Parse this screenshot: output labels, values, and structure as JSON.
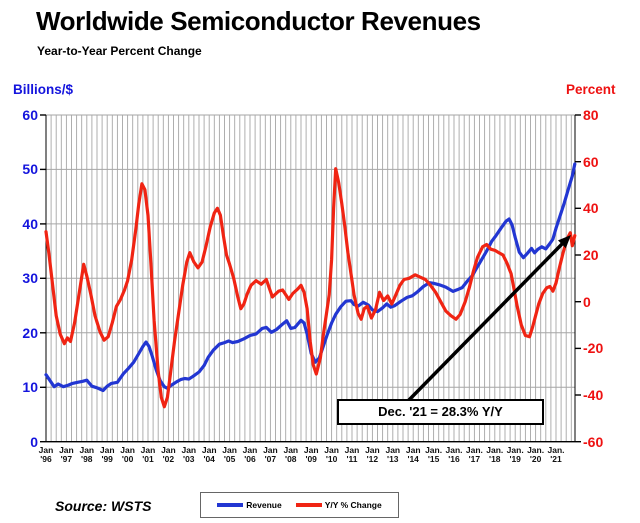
{
  "title": "Worldwide Semiconductor Revenues",
  "subtitle": "Year-to-Year Percent Change",
  "source": "Source: WSTS",
  "annotation": {
    "text": "Dec. '21 = 28.3% Y/Y"
  },
  "left_axis": {
    "label": "Billions/$",
    "color": "#1414dd",
    "ticks": [
      60,
      50,
      40,
      30,
      20,
      10,
      0
    ],
    "min": 0,
    "max": 60
  },
  "right_axis": {
    "label": "Percent",
    "color": "#ee1111",
    "ticks": [
      80,
      60,
      40,
      20,
      0,
      -20,
      -40,
      -60
    ],
    "min": -60,
    "max": 80
  },
  "x_axis": {
    "month_labels": [
      "Jan",
      "Jan",
      "Jan",
      "Jan",
      "Jan",
      "Jan",
      "Jan",
      "Jan",
      "Jan",
      "Jan",
      "Jan",
      "Jan",
      "Jan",
      "Jan",
      "Jan",
      "Jan",
      "Jan",
      "Jan",
      "Jan",
      "Jan.",
      "Jan.",
      "Jan.",
      "Jan.",
      "Jan.",
      "Jan.",
      "Jan."
    ],
    "year_labels": [
      "'96",
      "'97",
      "'98",
      "'99",
      "'00",
      "'01",
      "'02",
      "'03",
      "'04",
      "'05",
      "'06",
      "'07",
      "'08",
      "'09",
      "'10",
      "'11",
      "'12",
      "'13",
      "'14",
      "'15",
      "'16",
      "'17",
      "'18",
      "'19",
      "'20",
      "'21"
    ]
  },
  "legend": [
    {
      "label": "Revenue",
      "color": "#2236d2"
    },
    {
      "label": "Y/Y % Change",
      "color": "#f02413"
    }
  ],
  "chart_data": {
    "type": "line",
    "title": "Worldwide Semiconductor Revenues",
    "subtitle": "Year-to-Year Percent Change",
    "x_range": [
      1996,
      2022
    ],
    "left_ylim": [
      0,
      60
    ],
    "right_ylim": [
      -60,
      80
    ],
    "gridlines": {
      "vertical": "quarterly",
      "horizontal": "every 10 on left axis"
    },
    "legend_position": "bottom-center",
    "annotation": {
      "text": "Dec. '21 = 28.3% Y/Y",
      "points_to": [
        2021.92,
        28.3
      ]
    },
    "series": [
      {
        "name": "Revenue",
        "axis": "left",
        "unit": "US$ billions per month",
        "color": "#2236d2",
        "points": [
          [
            1996.0,
            12.3
          ],
          [
            1996.2,
            11.2
          ],
          [
            1996.4,
            10.1
          ],
          [
            1996.6,
            10.6
          ],
          [
            1996.85,
            10.1
          ],
          [
            1997.1,
            10.4
          ],
          [
            1997.3,
            10.7
          ],
          [
            1997.55,
            10.9
          ],
          [
            1997.8,
            11.1
          ],
          [
            1998.0,
            11.3
          ],
          [
            1998.25,
            10.2
          ],
          [
            1998.5,
            9.9
          ],
          [
            1998.8,
            9.4
          ],
          [
            1999.0,
            10.2
          ],
          [
            1999.2,
            10.7
          ],
          [
            1999.5,
            10.9
          ],
          [
            1999.8,
            12.5
          ],
          [
            2000.05,
            13.5
          ],
          [
            2000.3,
            14.6
          ],
          [
            2000.55,
            16.2
          ],
          [
            2000.75,
            17.5
          ],
          [
            2000.9,
            18.3
          ],
          [
            2001.05,
            17.5
          ],
          [
            2001.2,
            15.8
          ],
          [
            2001.4,
            13.2
          ],
          [
            2001.6,
            11.2
          ],
          [
            2001.8,
            10.1
          ],
          [
            2001.95,
            9.8
          ],
          [
            2002.15,
            10.4
          ],
          [
            2002.4,
            11.0
          ],
          [
            2002.6,
            11.4
          ],
          [
            2002.8,
            11.6
          ],
          [
            2003.0,
            11.5
          ],
          [
            2003.2,
            12.0
          ],
          [
            2003.5,
            12.8
          ],
          [
            2003.75,
            14.0
          ],
          [
            2003.95,
            15.5
          ],
          [
            2004.2,
            16.8
          ],
          [
            2004.5,
            17.9
          ],
          [
            2004.75,
            18.2
          ],
          [
            2004.95,
            18.5
          ],
          [
            2005.15,
            18.2
          ],
          [
            2005.4,
            18.4
          ],
          [
            2005.7,
            18.9
          ],
          [
            2006.0,
            19.5
          ],
          [
            2006.3,
            19.8
          ],
          [
            2006.6,
            20.8
          ],
          [
            2006.8,
            21.0
          ],
          [
            2007.05,
            20.1
          ],
          [
            2007.3,
            20.6
          ],
          [
            2007.6,
            21.6
          ],
          [
            2007.8,
            22.2
          ],
          [
            2008.0,
            20.8
          ],
          [
            2008.2,
            21.0
          ],
          [
            2008.5,
            22.3
          ],
          [
            2008.65,
            21.8
          ],
          [
            2008.8,
            19.8
          ],
          [
            2009.0,
            16.2
          ],
          [
            2009.2,
            14.6
          ],
          [
            2009.4,
            15.4
          ],
          [
            2009.6,
            17.6
          ],
          [
            2009.8,
            19.8
          ],
          [
            2010.0,
            21.8
          ],
          [
            2010.2,
            23.4
          ],
          [
            2010.45,
            24.8
          ],
          [
            2010.7,
            25.8
          ],
          [
            2010.95,
            25.9
          ],
          [
            2011.1,
            25.2
          ],
          [
            2011.3,
            24.9
          ],
          [
            2011.55,
            25.6
          ],
          [
            2011.8,
            25.1
          ],
          [
            2012.0,
            24.2
          ],
          [
            2012.25,
            23.9
          ],
          [
            2012.5,
            24.6
          ],
          [
            2012.7,
            25.3
          ],
          [
            2012.9,
            24.7
          ],
          [
            2013.1,
            25.0
          ],
          [
            2013.4,
            25.8
          ],
          [
            2013.7,
            26.5
          ],
          [
            2013.95,
            26.8
          ],
          [
            2014.2,
            27.5
          ],
          [
            2014.5,
            28.5
          ],
          [
            2014.8,
            29.2
          ],
          [
            2015.0,
            29.1
          ],
          [
            2015.3,
            28.8
          ],
          [
            2015.6,
            28.4
          ],
          [
            2015.95,
            27.6
          ],
          [
            2016.15,
            27.9
          ],
          [
            2016.4,
            28.3
          ],
          [
            2016.65,
            29.5
          ],
          [
            2016.9,
            30.5
          ],
          [
            2017.1,
            31.8
          ],
          [
            2017.35,
            33.4
          ],
          [
            2017.6,
            35.0
          ],
          [
            2017.85,
            36.8
          ],
          [
            2018.05,
            37.8
          ],
          [
            2018.3,
            39.2
          ],
          [
            2018.55,
            40.5
          ],
          [
            2018.7,
            40.9
          ],
          [
            2018.85,
            39.8
          ],
          [
            2019.0,
            37.5
          ],
          [
            2019.2,
            34.8
          ],
          [
            2019.4,
            33.8
          ],
          [
            2019.6,
            34.6
          ],
          [
            2019.8,
            35.5
          ],
          [
            2019.95,
            34.7
          ],
          [
            2020.1,
            35.3
          ],
          [
            2020.3,
            35.8
          ],
          [
            2020.5,
            35.4
          ],
          [
            2020.7,
            36.4
          ],
          [
            2020.85,
            37.2
          ],
          [
            2021.0,
            39.2
          ],
          [
            2021.2,
            41.5
          ],
          [
            2021.4,
            43.8
          ],
          [
            2021.6,
            46.3
          ],
          [
            2021.8,
            48.8
          ],
          [
            2021.92,
            51.0
          ]
        ]
      },
      {
        "name": "Y/Y % Change",
        "axis": "right",
        "unit": "percent",
        "color": "#f02413",
        "points": [
          [
            1996.0,
            30
          ],
          [
            1996.15,
            20
          ],
          [
            1996.3,
            9
          ],
          [
            1996.5,
            -6
          ],
          [
            1996.7,
            -14
          ],
          [
            1996.9,
            -18
          ],
          [
            1997.05,
            -15.5
          ],
          [
            1997.2,
            -17
          ],
          [
            1997.4,
            -9
          ],
          [
            1997.6,
            2
          ],
          [
            1997.85,
            16
          ],
          [
            1998.0,
            11
          ],
          [
            1998.2,
            3
          ],
          [
            1998.4,
            -6
          ],
          [
            1998.65,
            -13
          ],
          [
            1998.85,
            -16.5
          ],
          [
            1999.05,
            -15
          ],
          [
            1999.25,
            -9
          ],
          [
            1999.45,
            -2
          ],
          [
            1999.65,
            1
          ],
          [
            1999.85,
            5
          ],
          [
            2000.0,
            9
          ],
          [
            2000.2,
            18
          ],
          [
            2000.4,
            31
          ],
          [
            2000.55,
            42
          ],
          [
            2000.7,
            50.5
          ],
          [
            2000.85,
            48
          ],
          [
            2001.0,
            37
          ],
          [
            2001.15,
            15
          ],
          [
            2001.3,
            -8
          ],
          [
            2001.5,
            -30
          ],
          [
            2001.65,
            -41
          ],
          [
            2001.8,
            -45
          ],
          [
            2001.95,
            -41
          ],
          [
            2002.1,
            -31
          ],
          [
            2002.3,
            -17
          ],
          [
            2002.5,
            -5
          ],
          [
            2002.7,
            7
          ],
          [
            2002.9,
            17
          ],
          [
            2003.05,
            21
          ],
          [
            2003.25,
            17
          ],
          [
            2003.45,
            14.5
          ],
          [
            2003.65,
            17
          ],
          [
            2003.85,
            24
          ],
          [
            2004.05,
            32
          ],
          [
            2004.25,
            38
          ],
          [
            2004.4,
            40
          ],
          [
            2004.55,
            37
          ],
          [
            2004.7,
            28
          ],
          [
            2004.85,
            20
          ],
          [
            2005.0,
            16
          ],
          [
            2005.2,
            10
          ],
          [
            2005.4,
            2
          ],
          [
            2005.55,
            -3
          ],
          [
            2005.7,
            -1
          ],
          [
            2005.85,
            3
          ],
          [
            2006.05,
            7
          ],
          [
            2006.3,
            9
          ],
          [
            2006.55,
            7.5
          ],
          [
            2006.8,
            9.5
          ],
          [
            2007.1,
            2
          ],
          [
            2007.4,
            4.5
          ],
          [
            2007.6,
            5
          ],
          [
            2007.9,
            1
          ],
          [
            2008.1,
            3.5
          ],
          [
            2008.35,
            5.5
          ],
          [
            2008.5,
            7
          ],
          [
            2008.65,
            4
          ],
          [
            2008.8,
            -3
          ],
          [
            2008.95,
            -17
          ],
          [
            2009.1,
            -27
          ],
          [
            2009.25,
            -31
          ],
          [
            2009.45,
            -24
          ],
          [
            2009.6,
            -14
          ],
          [
            2009.75,
            -5
          ],
          [
            2009.88,
            3
          ],
          [
            2010.0,
            18
          ],
          [
            2010.1,
            40
          ],
          [
            2010.2,
            57
          ],
          [
            2010.35,
            51
          ],
          [
            2010.5,
            42
          ],
          [
            2010.65,
            32
          ],
          [
            2010.8,
            21
          ],
          [
            2010.95,
            12
          ],
          [
            2011.1,
            3
          ],
          [
            2011.3,
            -5
          ],
          [
            2011.45,
            -7.5
          ],
          [
            2011.6,
            -3
          ],
          [
            2011.75,
            -2
          ],
          [
            2011.95,
            -7
          ],
          [
            2012.15,
            -3.5
          ],
          [
            2012.35,
            4
          ],
          [
            2012.55,
            0.5
          ],
          [
            2012.75,
            2.5
          ],
          [
            2012.95,
            -1
          ],
          [
            2013.15,
            3
          ],
          [
            2013.35,
            7
          ],
          [
            2013.55,
            9.5
          ],
          [
            2013.8,
            10
          ],
          [
            2014.1,
            11.5
          ],
          [
            2014.35,
            10.5
          ],
          [
            2014.6,
            9.5
          ],
          [
            2014.85,
            7
          ],
          [
            2015.1,
            4
          ],
          [
            2015.35,
            0
          ],
          [
            2015.6,
            -4
          ],
          [
            2015.85,
            -6
          ],
          [
            2016.1,
            -7.5
          ],
          [
            2016.3,
            -5.5
          ],
          [
            2016.55,
            0
          ],
          [
            2016.75,
            6
          ],
          [
            2016.95,
            13
          ],
          [
            2017.15,
            19
          ],
          [
            2017.4,
            23.5
          ],
          [
            2017.6,
            24.5
          ],
          [
            2017.8,
            22.5
          ],
          [
            2018.0,
            22
          ],
          [
            2018.2,
            21
          ],
          [
            2018.4,
            20
          ],
          [
            2018.6,
            16.5
          ],
          [
            2018.8,
            12
          ],
          [
            2018.95,
            5
          ],
          [
            2019.1,
            -2
          ],
          [
            2019.3,
            -10
          ],
          [
            2019.5,
            -14.5
          ],
          [
            2019.7,
            -15
          ],
          [
            2019.85,
            -11
          ],
          [
            2020.0,
            -6
          ],
          [
            2020.15,
            -1
          ],
          [
            2020.35,
            3.5
          ],
          [
            2020.55,
            6
          ],
          [
            2020.7,
            6.5
          ],
          [
            2020.85,
            4.5
          ],
          [
            2021.0,
            8
          ],
          [
            2021.15,
            14
          ],
          [
            2021.35,
            21
          ],
          [
            2021.55,
            27
          ],
          [
            2021.7,
            29.5
          ],
          [
            2021.8,
            24
          ],
          [
            2021.92,
            28.3
          ]
        ]
      }
    ]
  }
}
